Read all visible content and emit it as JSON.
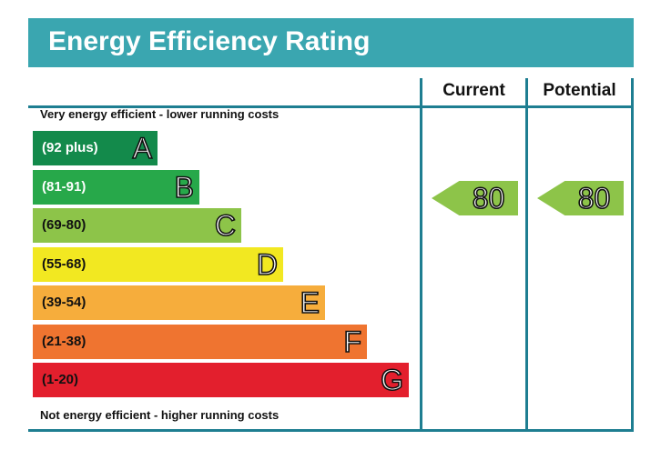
{
  "chart_data": {
    "type": "bar",
    "title": "Energy Efficiency Rating",
    "top_note": "Very energy efficient - lower running costs",
    "bottom_note": "Not energy efficient - higher running costs",
    "columns": [
      "Current",
      "Potential"
    ],
    "bands": [
      {
        "range": "(92 plus)",
        "letter": "A",
        "color": "#138a4b",
        "text_color": "#ffffff"
      },
      {
        "range": "(81-91)",
        "letter": "B",
        "color": "#27a84a",
        "text_color": "#ffffff"
      },
      {
        "range": "(69-80)",
        "letter": "C",
        "color": "#8dc449",
        "text_color": "#111111"
      },
      {
        "range": "(55-68)",
        "letter": "D",
        "color": "#f2e821",
        "text_color": "#111111"
      },
      {
        "range": "(39-54)",
        "letter": "E",
        "color": "#f6ad3c",
        "text_color": "#111111"
      },
      {
        "range": "(21-38)",
        "letter": "F",
        "color": "#ef7430",
        "text_color": "#111111"
      },
      {
        "range": "(1-20)",
        "letter": "G",
        "color": "#e31f2d",
        "text_color": "#111111"
      }
    ],
    "ratings": {
      "current": {
        "value": "80",
        "band": "C",
        "color": "#8dc449"
      },
      "potential": {
        "value": "80",
        "band": "C",
        "color": "#8dc449"
      }
    }
  }
}
